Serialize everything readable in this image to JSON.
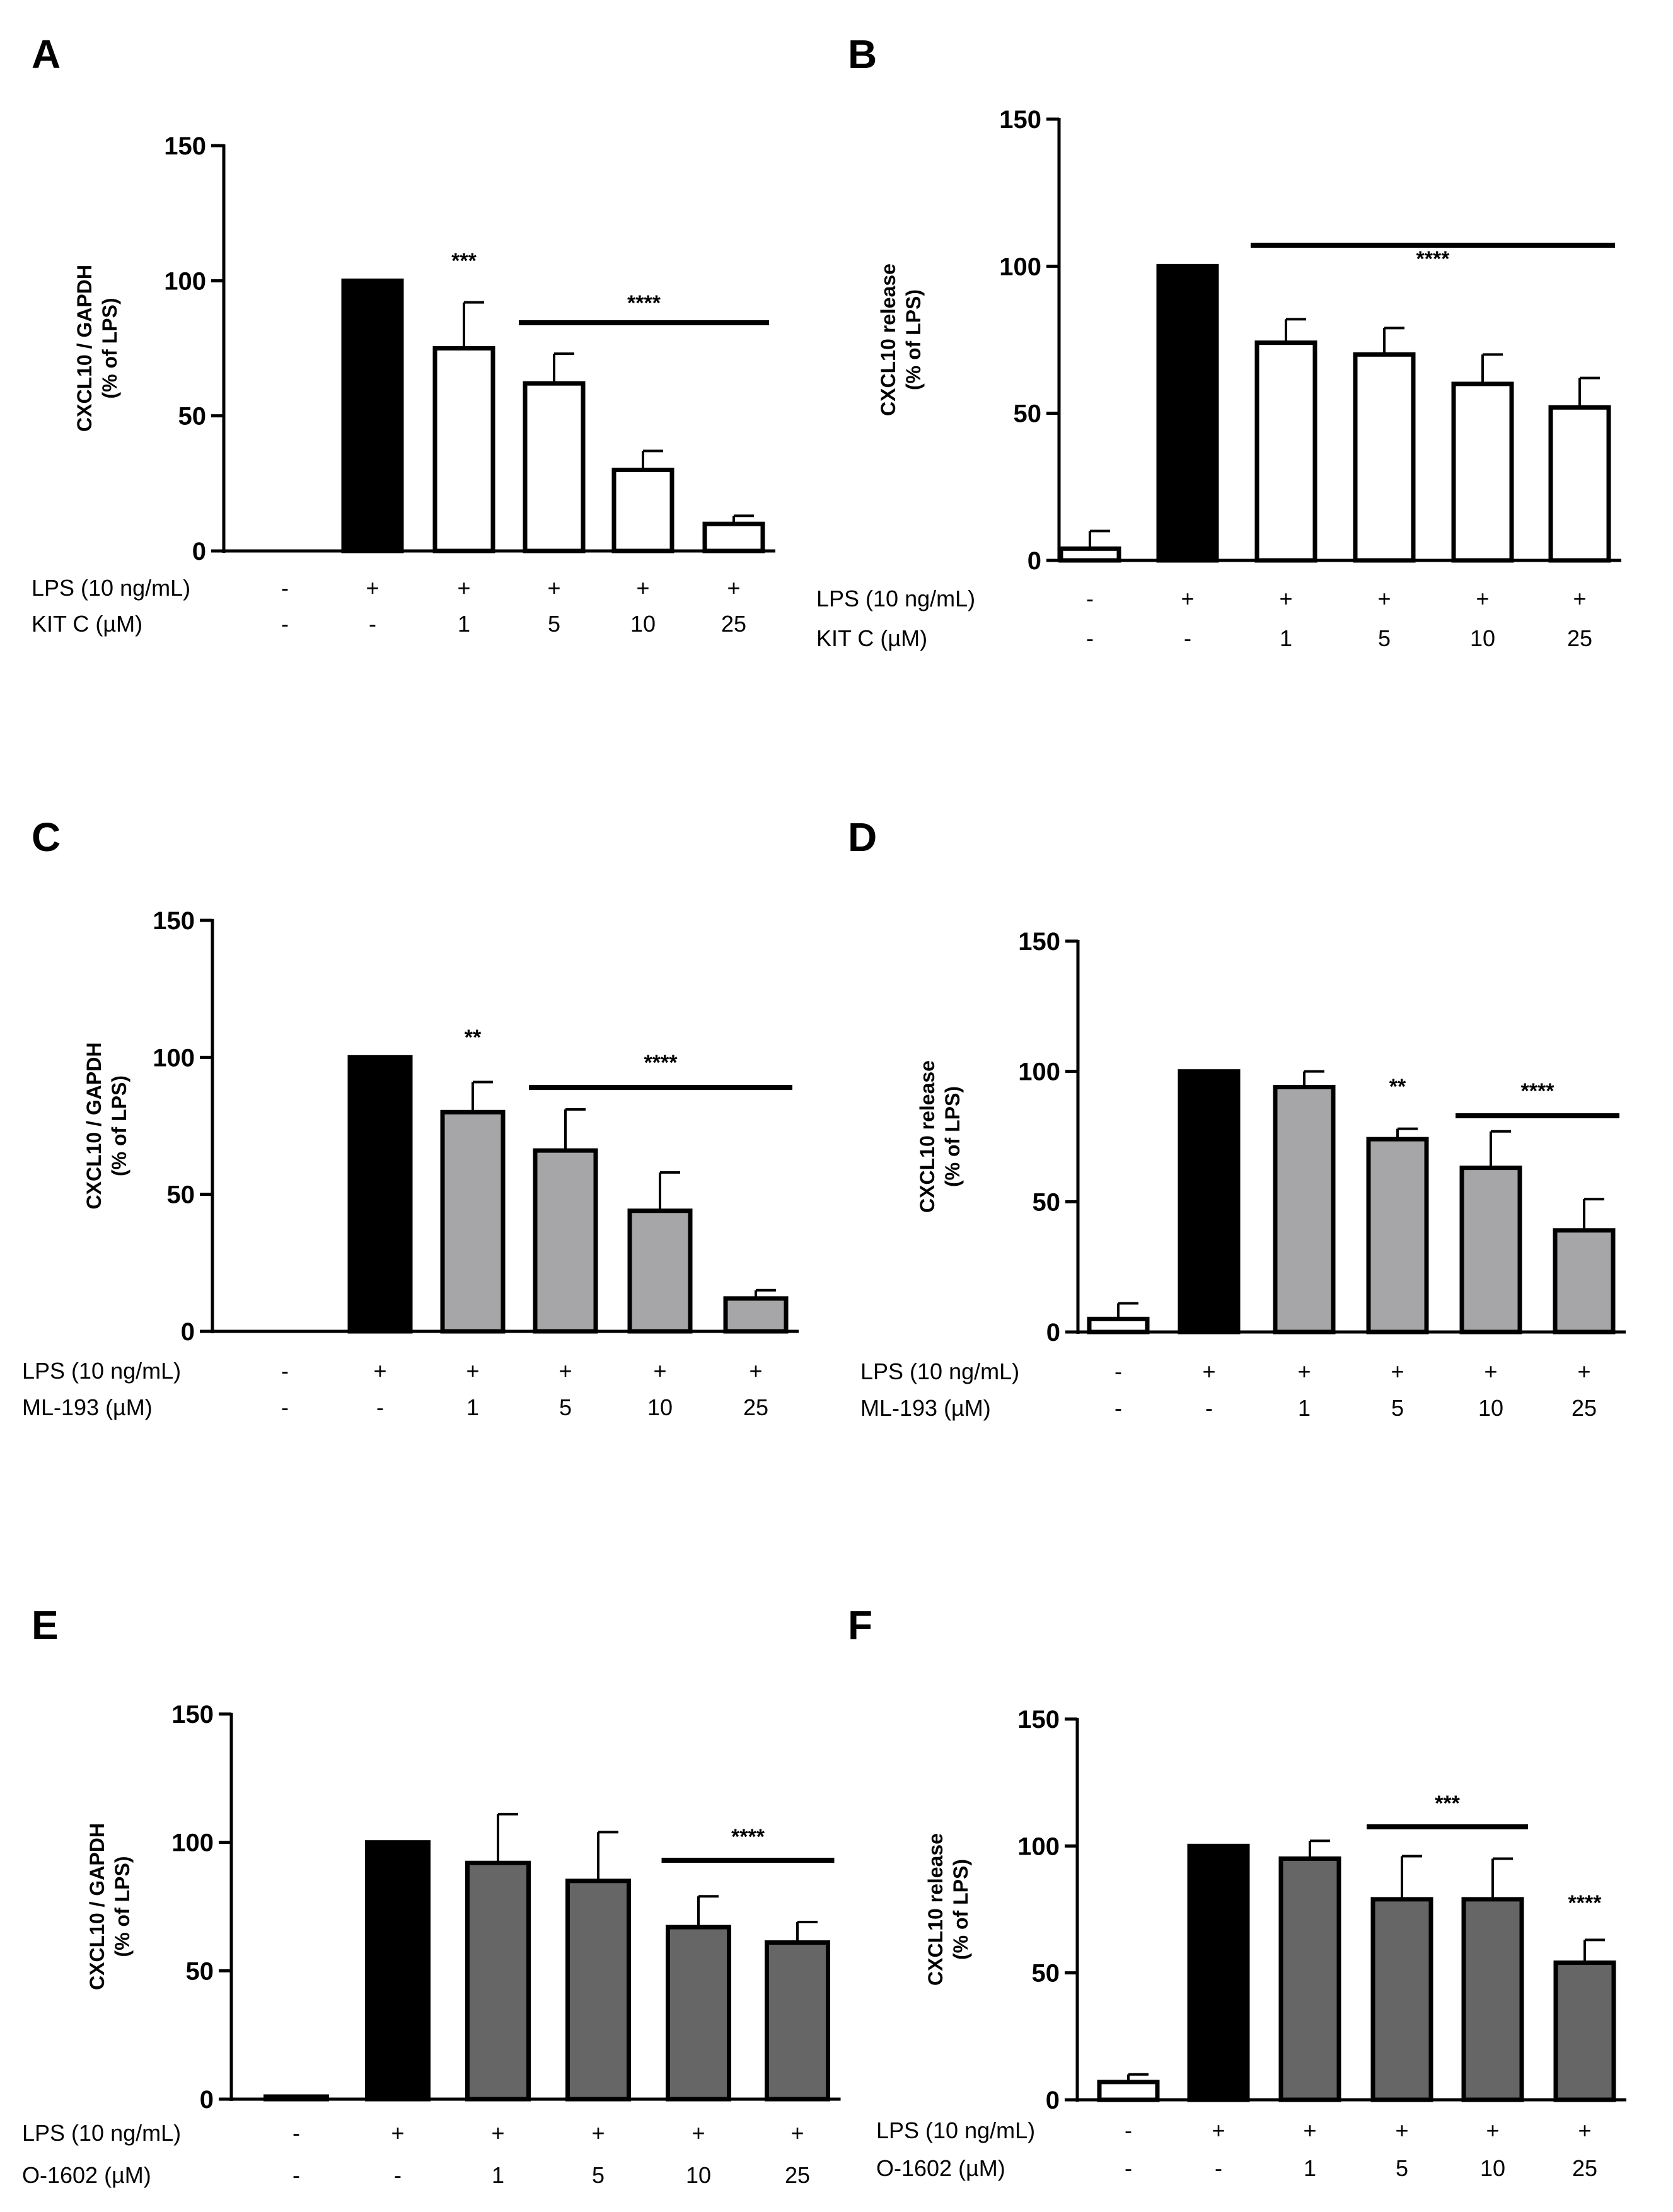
{
  "chart_data": [
    {
      "panel": "A",
      "type": "bar",
      "ylabel": [
        "CXCL10 / GAPDH",
        "(% of LPS)"
      ],
      "ylim": [
        0,
        150
      ],
      "yticks": [
        "0",
        "50",
        "100",
        "150"
      ],
      "values": [
        0,
        100,
        75,
        62,
        30,
        10
      ],
      "errors": [
        0,
        0,
        17,
        11,
        7,
        3
      ],
      "fills": [
        "#ffffff",
        "#000000",
        "#ffffff",
        "#ffffff",
        "#ffffff",
        "#ffffff"
      ],
      "rows": [
        {
          "label": "LPS (10 ng/mL)",
          "values": [
            "-",
            "+",
            "+",
            "+",
            "+",
            "+"
          ]
        },
        {
          "label": "KIT C (µM)",
          "values": [
            "-",
            "-",
            "1",
            "5",
            "10",
            "25"
          ]
        }
      ],
      "significance": [
        {
          "label": "***",
          "from": 2,
          "to": 2,
          "line": false
        },
        {
          "label": "****",
          "from": 3,
          "to": 5,
          "line": true
        }
      ]
    },
    {
      "panel": "B",
      "type": "bar",
      "ylabel": [
        "CXCL10 release",
        "(% of LPS)"
      ],
      "ylim": [
        0,
        150
      ],
      "yticks": [
        "0",
        "50",
        "100",
        "150"
      ],
      "values": [
        4,
        100,
        74,
        70,
        60,
        52
      ],
      "errors": [
        6,
        0,
        8,
        9,
        10,
        10
      ],
      "fills": [
        "#ffffff",
        "#000000",
        "#ffffff",
        "#ffffff",
        "#ffffff",
        "#ffffff"
      ],
      "rows": [
        {
          "label": "LPS (10 ng/mL)",
          "values": [
            "-",
            "+",
            "+",
            "+",
            "+",
            "+"
          ]
        },
        {
          "label": "KIT C (µM)",
          "values": [
            "-",
            "-",
            "1",
            "5",
            "10",
            "25"
          ]
        }
      ],
      "significance": [
        {
          "label": "****",
          "from": 2,
          "to": 5,
          "line": true
        }
      ]
    },
    {
      "panel": "C",
      "type": "bar",
      "ylabel": [
        "CXCL10 / GAPDH",
        "(% of LPS)"
      ],
      "ylim": [
        0,
        150
      ],
      "yticks": [
        "0",
        "50",
        "100",
        "150"
      ],
      "values": [
        0,
        100,
        80,
        66,
        44,
        12
      ],
      "errors": [
        0,
        0,
        11,
        15,
        14,
        3
      ],
      "fills": [
        "#ffffff",
        "#000000",
        "#a6a6a8",
        "#a6a6a8",
        "#a6a6a8",
        "#a6a6a8"
      ],
      "rows": [
        {
          "label": "LPS (10 ng/mL)",
          "values": [
            "-",
            "+",
            "+",
            "+",
            "+",
            "+"
          ]
        },
        {
          "label": "ML-193 (µM)",
          "values": [
            "-",
            "-",
            "1",
            "5",
            "10",
            "25"
          ]
        }
      ],
      "significance": [
        {
          "label": "**",
          "from": 2,
          "to": 2,
          "line": false
        },
        {
          "label": "****",
          "from": 3,
          "to": 5,
          "line": true
        }
      ]
    },
    {
      "panel": "D",
      "type": "bar",
      "ylabel": [
        "CXCL10 release",
        "(% of LPS)"
      ],
      "ylim": [
        0,
        150
      ],
      "yticks": [
        "0",
        "50",
        "100",
        "150"
      ],
      "values": [
        5,
        100,
        94,
        74,
        63,
        39
      ],
      "errors": [
        6,
        0,
        6,
        4,
        14,
        12
      ],
      "fills": [
        "#ffffff",
        "#000000",
        "#a6a6a8",
        "#a6a6a8",
        "#a6a6a8",
        "#a6a6a8"
      ],
      "rows": [
        {
          "label": "LPS (10 ng/mL)",
          "values": [
            "-",
            "+",
            "+",
            "+",
            "+",
            "+"
          ]
        },
        {
          "label": "ML-193 (µM)",
          "values": [
            "-",
            "-",
            "1",
            "5",
            "10",
            "25"
          ]
        }
      ],
      "significance": [
        {
          "label": "**",
          "from": 3,
          "to": 3,
          "line": false
        },
        {
          "label": "****",
          "from": 4,
          "to": 5,
          "line": true
        }
      ]
    },
    {
      "panel": "E",
      "type": "bar",
      "ylabel": [
        "CXCL10 / GAPDH",
        "(% of LPS)"
      ],
      "ylim": [
        0,
        150
      ],
      "yticks": [
        "0",
        "50",
        "100",
        "150"
      ],
      "values": [
        1,
        100,
        92,
        85,
        67,
        61
      ],
      "errors": [
        0,
        0,
        19,
        19,
        12,
        8
      ],
      "fills": [
        "#ffffff",
        "#000000",
        "#666666",
        "#666666",
        "#666666",
        "#666666"
      ],
      "rows": [
        {
          "label": "LPS (10 ng/mL)",
          "values": [
            "-",
            "+",
            "+",
            "+",
            "+",
            "+"
          ]
        },
        {
          "label": "O-1602 (µM)",
          "values": [
            "-",
            "-",
            "1",
            "5",
            "10",
            "25"
          ]
        }
      ],
      "significance": [
        {
          "label": "****",
          "from": 4,
          "to": 5,
          "line": true
        }
      ]
    },
    {
      "panel": "F",
      "type": "bar",
      "ylabel": [
        "CXCL10 release",
        "(% of LPS)"
      ],
      "ylim": [
        0,
        150
      ],
      "yticks": [
        "0",
        "50",
        "100",
        "150"
      ],
      "values": [
        7,
        100,
        95,
        79,
        79,
        54
      ],
      "errors": [
        3,
        0,
        7,
        17,
        16,
        9
      ],
      "fills": [
        "#ffffff",
        "#000000",
        "#666666",
        "#666666",
        "#666666",
        "#666666"
      ],
      "rows": [
        {
          "label": "LPS (10 ng/mL)",
          "values": [
            "-",
            "+",
            "+",
            "+",
            "+",
            "+"
          ]
        },
        {
          "label": "O-1602 (µM)",
          "values": [
            "-",
            "-",
            "1",
            "5",
            "10",
            "25"
          ]
        }
      ],
      "significance": [
        {
          "label": "***",
          "from": 3,
          "to": 4,
          "line": true
        },
        {
          "label": "****",
          "from": 5,
          "to": 5,
          "line": false
        }
      ]
    }
  ]
}
